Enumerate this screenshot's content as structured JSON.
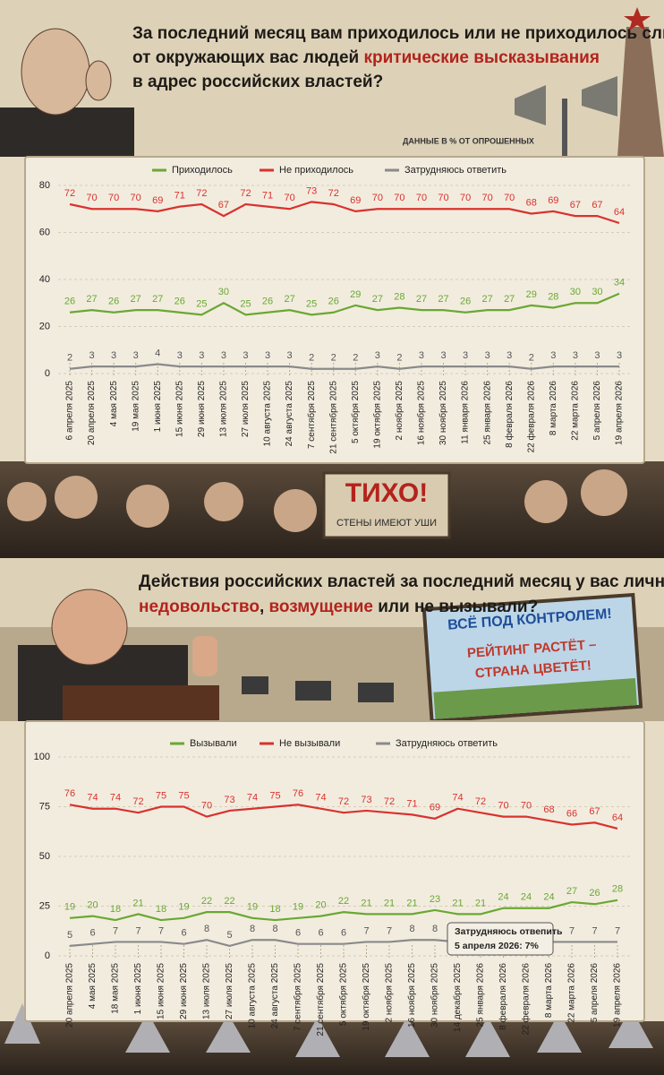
{
  "chart_data": [
    {
      "type": "line",
      "title_lines": [
        [
          {
            "text": "За последний месяц вам приходилось или не приходилось слышать",
            "highlight": false
          }
        ],
        [
          {
            "text": "от окружающих вас людей ",
            "highlight": false
          },
          {
            "text": "критические высказывания",
            "highlight": true
          }
        ],
        [
          {
            "text": "в адрес российских властей?",
            "highlight": false
          }
        ]
      ],
      "note": "ДАННЫЕ В % ОТ ОПРОШЕННЫХ",
      "signs": [
        "ТИХО!",
        "СТЕНЫ ИМЕЮТ УШИ"
      ],
      "categories": [
        "6 апреля 2025",
        "20 апреля 2025",
        "4 мая 2025",
        "19 мая 2025",
        "1 июня 2025",
        "15 июня 2025",
        "29 июня 2025",
        "13 июля 2025",
        "27 июля 2025",
        "10 августа 2025",
        "24 августа 2025",
        "7 сентября 2025",
        "21 сентября 2025",
        "5 октября 2025",
        "19 октября 2025",
        "2 ноября 2025",
        "16 ноября 2025",
        "30 ноября 2025",
        "11 января 2026",
        "25 января 2026",
        "8 февраля 2026",
        "22 февраля 2026",
        "8 марта 2026",
        "22 марта 2026",
        "5 апреля 2026",
        "19 апреля 2026"
      ],
      "series": [
        {
          "name": "Приходилось",
          "color": "#6aa832",
          "values": [
            26,
            27,
            26,
            27,
            27,
            26,
            25,
            30,
            25,
            26,
            27,
            25,
            26,
            29,
            27,
            28,
            27,
            27,
            26,
            27,
            27,
            29,
            28,
            30,
            30,
            34
          ]
        },
        {
          "name": "Не приходилось",
          "color": "#d9322e",
          "values": [
            72,
            70,
            70,
            70,
            69,
            71,
            72,
            67,
            72,
            71,
            70,
            73,
            72,
            69,
            70,
            70,
            70,
            70,
            70,
            70,
            70,
            68,
            69,
            67,
            67,
            64
          ]
        },
        {
          "name": "Затрудняюсь ответить",
          "color": "#8a8a8a",
          "values": [
            2,
            3,
            3,
            3,
            4,
            3,
            3,
            3,
            3,
            3,
            3,
            2,
            2,
            2,
            3,
            2,
            3,
            3,
            3,
            3,
            3,
            2,
            3,
            3,
            3,
            3
          ]
        }
      ],
      "ylim": [
        0,
        80
      ],
      "yticks": [
        0,
        20,
        40,
        60,
        80
      ],
      "grid": true,
      "legend": "top"
    },
    {
      "type": "line",
      "title_lines": [
        [
          {
            "text": "Действия российских властей за последний месяц у вас лично вызывали",
            "highlight": false
          }
        ],
        [
          {
            "text": "недовольство",
            "highlight": true
          },
          {
            "text": ", ",
            "highlight": false
          },
          {
            "text": "возмущение",
            "highlight": true
          },
          {
            "text": " или не вызывали?",
            "highlight": false
          }
        ]
      ],
      "signs": [
        "ВСЁ ПОД КОНТРОЛЕМ!",
        "РЕЙТИНГ РАСТЁТ –",
        "СТРАНА ЦВЕТЁТ!"
      ],
      "annotation": [
        "Затрудняюсь отвепить",
        "5 апреля 2026: 7%"
      ],
      "categories": [
        "20 апреля 2025",
        "4 мая 2025",
        "18 мая 2025",
        "1 июня 2025",
        "15 июня 2025",
        "29 июня 2025",
        "13 июля 2025",
        "27 июля 2025",
        "10 августа 2025",
        "24 августа 2025",
        "7 сентября 2025",
        "21 сентября 2025",
        "5 октября 2025",
        "19 октября 2025",
        "2 ноября 2025",
        "16 ноября 2025",
        "30 ноября 2025",
        "14 декабря 2025",
        "25 января 2026",
        "8 февраля 2026",
        "22 февраля 2026",
        "8 марта 2026",
        "22 марта 2026",
        "5 апреля 2026",
        "19 апреля 2026"
      ],
      "series": [
        {
          "name": "Вызывали",
          "color": "#6aa832",
          "values": [
            19,
            20,
            18,
            21,
            18,
            19,
            22,
            22,
            19,
            18,
            19,
            20,
            22,
            21,
            21,
            21,
            23,
            21,
            21,
            24,
            24,
            24,
            27,
            26,
            28
          ]
        },
        {
          "name": "Не вызывали",
          "color": "#d9322e",
          "values": [
            76,
            74,
            74,
            72,
            75,
            75,
            70,
            73,
            74,
            75,
            76,
            74,
            72,
            73,
            72,
            71,
            69,
            74,
            72,
            70,
            70,
            68,
            66,
            67,
            64
          ]
        },
        {
          "name": "Затрудняюсь ответить",
          "color": "#8a8a8a",
          "values": [
            5,
            6,
            7,
            7,
            7,
            6,
            8,
            5,
            8,
            8,
            6,
            6,
            6,
            7,
            7,
            8,
            8,
            7,
            7,
            7,
            7,
            7,
            7,
            7,
            7
          ]
        }
      ],
      "ylim": [
        0,
        100
      ],
      "yticks": [
        0,
        25,
        50,
        75,
        100
      ],
      "grid": true,
      "legend": "top"
    }
  ]
}
